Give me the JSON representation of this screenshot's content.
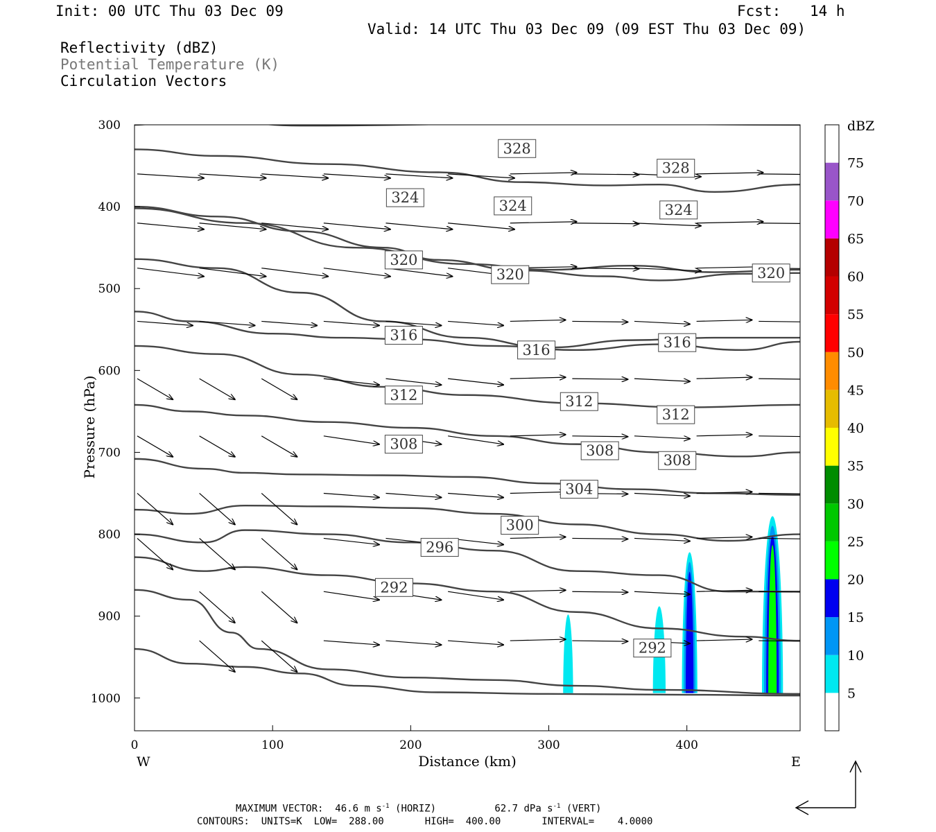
{
  "header": {
    "init": "Init: 00 UTC Thu 03 Dec 09",
    "fcst_label": "Fcst:",
    "fcst_value": "14 h",
    "valid": "Valid: 14 UTC Thu 03 Dec 09 (09 EST Thu 03 Dec 09)",
    "field1": "Reflectivity (dBZ)",
    "field2": "Potential Temperature (K)",
    "field3": "Circulation Vectors"
  },
  "footer": {
    "maxvec_label": "MAXIMUM VECTOR:",
    "maxvec_horiz": "46.6 m s",
    "maxvec_horiz_exp": "-1",
    "maxvec_horiz_tag": "(HORIZ)",
    "maxvec_vert": "62.7 dPa s",
    "maxvec_vert_exp": "-1",
    "maxvec_vert_tag": "(VERT)",
    "contours": "CONTOURS:  UNITS=K  LOW=  288.00       HIGH=  400.00       INTERVAL=    4.0000"
  },
  "chart_data": {
    "type": "cross-section",
    "xlabel": "Distance (km)",
    "ylabel": "Pressure (hPa)",
    "xlim": [
      0,
      482
    ],
    "ylim": [
      1040,
      300
    ],
    "x_ticks": [
      0,
      100,
      200,
      300,
      400
    ],
    "y_ticks": [
      300,
      400,
      500,
      600,
      700,
      800,
      900,
      1000
    ],
    "x_left_label": "W",
    "x_right_label": "E",
    "theta_labels": [
      {
        "text": "328",
        "x": 277,
        "p": 329
      },
      {
        "text": "328",
        "x": 392,
        "p": 353
      },
      {
        "text": "324",
        "x": 196,
        "p": 389
      },
      {
        "text": "324",
        "x": 274,
        "p": 399
      },
      {
        "text": "324",
        "x": 394,
        "p": 404
      },
      {
        "text": "320",
        "x": 195,
        "p": 465
      },
      {
        "text": "320",
        "x": 272,
        "p": 483
      },
      {
        "text": "320",
        "x": 461,
        "p": 481
      },
      {
        "text": "316",
        "x": 195,
        "p": 557
      },
      {
        "text": "316",
        "x": 291,
        "p": 575
      },
      {
        "text": "316",
        "x": 393,
        "p": 566
      },
      {
        "text": "312",
        "x": 195,
        "p": 630
      },
      {
        "text": "312",
        "x": 322,
        "p": 638
      },
      {
        "text": "312",
        "x": 392,
        "p": 654
      },
      {
        "text": "308",
        "x": 195,
        "p": 690
      },
      {
        "text": "308",
        "x": 337,
        "p": 698
      },
      {
        "text": "308",
        "x": 393,
        "p": 710
      },
      {
        "text": "304",
        "x": 322,
        "p": 745
      },
      {
        "text": "300",
        "x": 279,
        "p": 789
      },
      {
        "text": "296",
        "x": 221,
        "p": 816
      },
      {
        "text": "292",
        "x": 188,
        "p": 865
      },
      {
        "text": "292",
        "x": 375,
        "p": 939
      }
    ],
    "reflectivity_cells": [
      {
        "x_center": 314,
        "half_width": 3,
        "p_top": 898,
        "p_bottom": 994,
        "max_dbz": 7
      },
      {
        "x_center": 380,
        "half_width": 4,
        "p_top": 888,
        "p_bottom": 994,
        "max_dbz": 8
      },
      {
        "x_center": 402,
        "half_width": 5,
        "p_top": 822,
        "p_bottom": 994,
        "max_dbz": 17
      },
      {
        "x_center": 462,
        "half_width": 7,
        "p_top": 778,
        "p_bottom": 994,
        "max_dbz": 22
      }
    ],
    "legend": {
      "title": "dBZ",
      "labels": [
        "5",
        "10",
        "15",
        "20",
        "25",
        "30",
        "35",
        "40",
        "45",
        "50",
        "55",
        "60",
        "65",
        "70",
        "75"
      ],
      "colors": [
        "#ffffff",
        "#00e8f0",
        "#0096f5",
        "#0000f0",
        "#00ff00",
        "#00c800",
        "#008c00",
        "#ffff00",
        "#e6bc00",
        "#ff8c00",
        "#ff0000",
        "#d20000",
        "#b40000",
        "#ff00ff",
        "#9955c9",
        "#ffffff"
      ]
    }
  }
}
